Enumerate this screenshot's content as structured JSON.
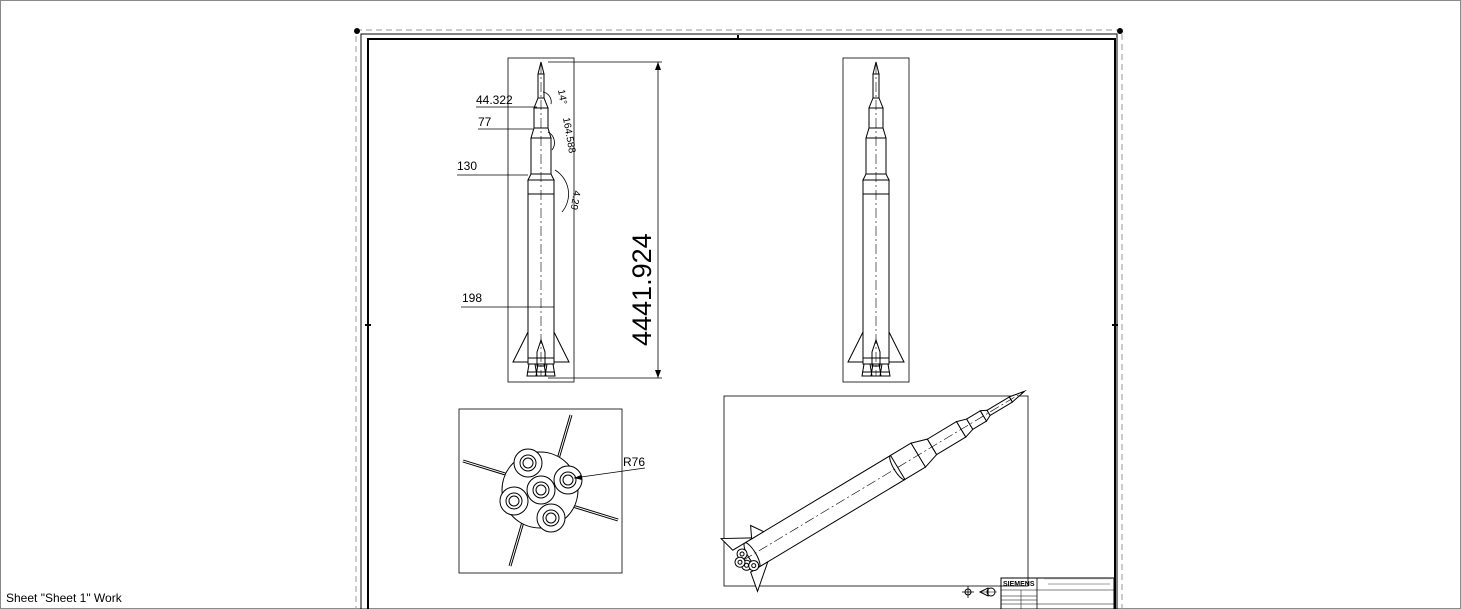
{
  "status": {
    "label": "Sheet \"Sheet 1\" Work"
  },
  "dimensions": {
    "d1": "44.322",
    "d2": "77",
    "d3": "130",
    "d4": "198",
    "a1": "14°",
    "a2": "164.588",
    "a3": "4.29",
    "overall_height": "4441.924",
    "radius": "R76"
  },
  "title_block": {
    "company": "SIEMENS"
  }
}
